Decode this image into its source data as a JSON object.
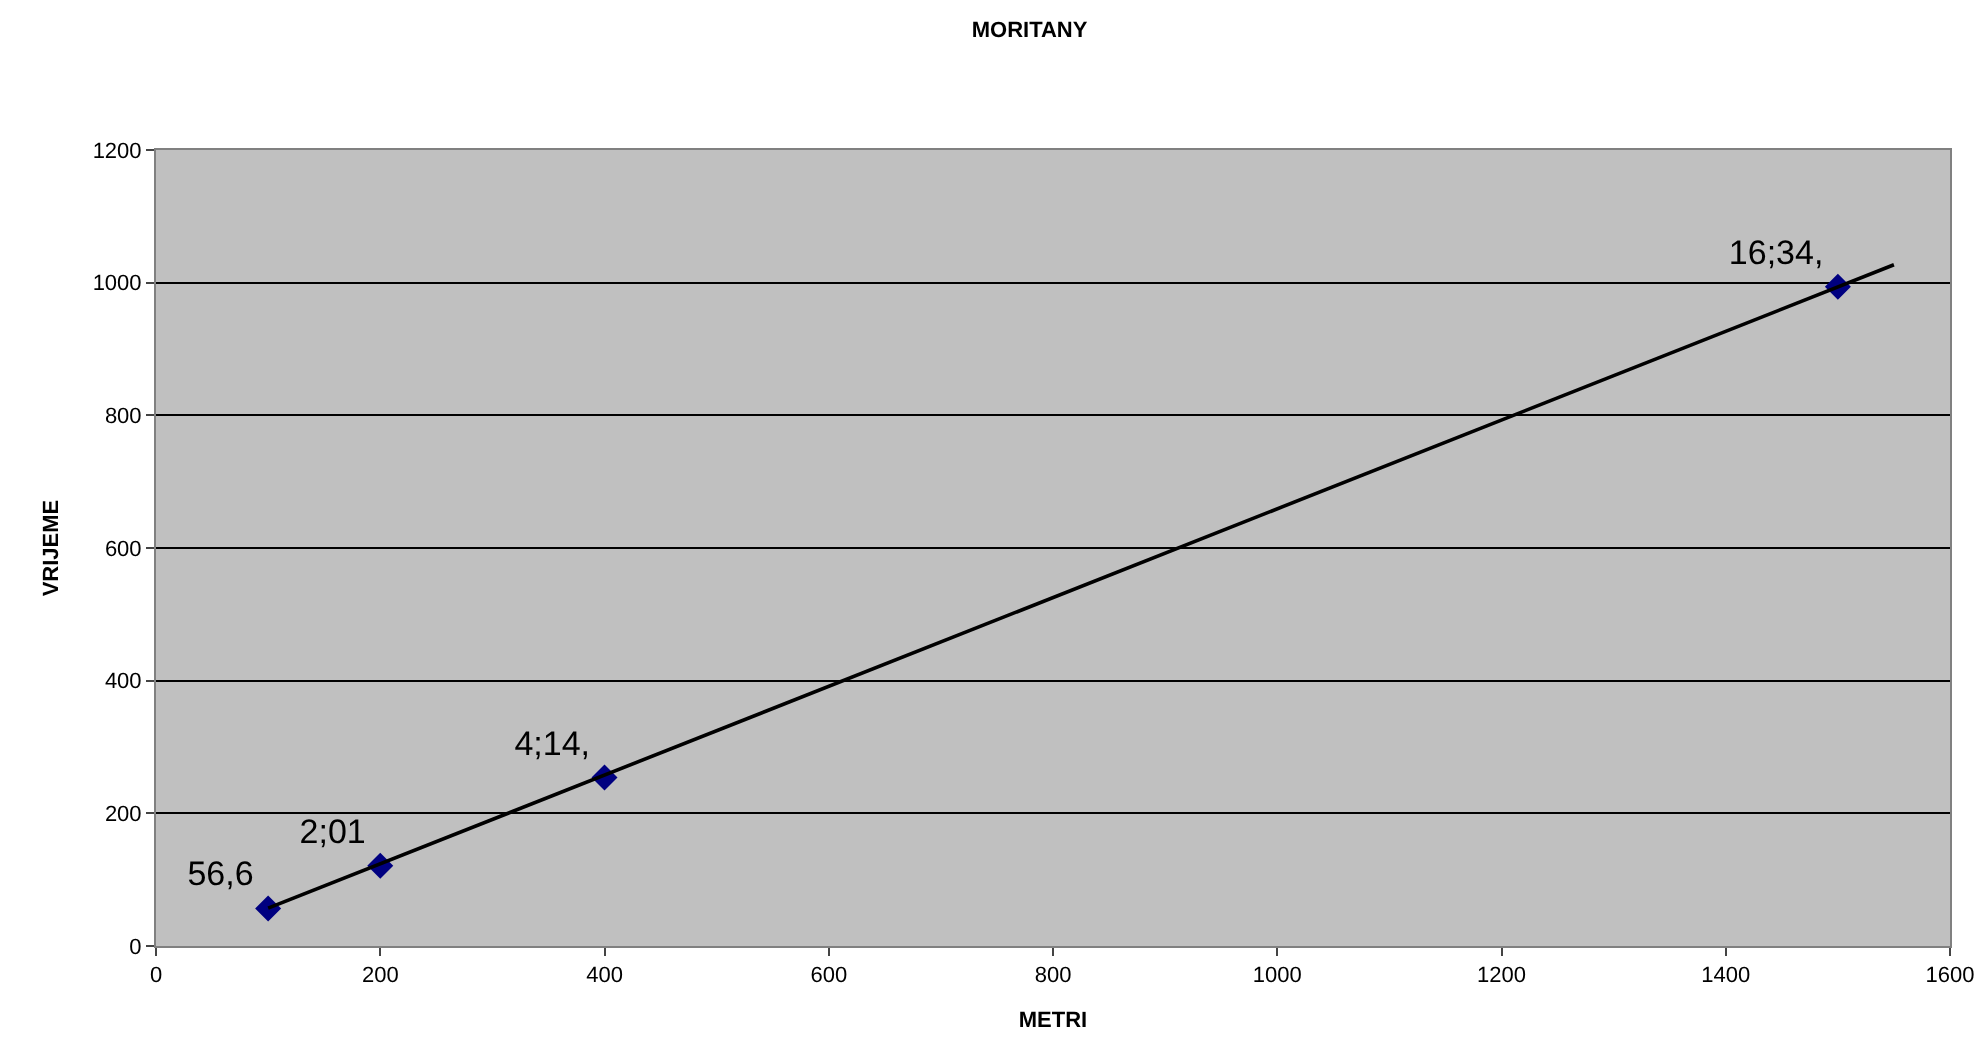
{
  "chart_data": {
    "type": "scatter",
    "title": "MORITANY",
    "xlabel": "METRI",
    "ylabel": "VRIJEME",
    "xlim": [
      0,
      1600
    ],
    "xticks": [
      0,
      200,
      400,
      600,
      800,
      1000,
      1200,
      1400,
      1600
    ],
    "ylim": [
      0,
      1200
    ],
    "yticks": [
      0,
      200,
      400,
      600,
      800,
      1000,
      1200
    ],
    "grid": "y",
    "legend": false,
    "series": [
      {
        "marker": "diamond",
        "color": "#000080",
        "x": [
          100,
          200,
          400,
          1500
        ],
        "values": [
          56.6,
          121,
          254,
          994
        ],
        "value_labels": [
          "56,6",
          "2;01",
          "4;14,",
          "16;34,"
        ]
      },
      {
        "type": "line",
        "marker": "none",
        "color": "#000000",
        "x": [
          100,
          1550
        ],
        "values": [
          57,
          1027
        ]
      }
    ]
  }
}
